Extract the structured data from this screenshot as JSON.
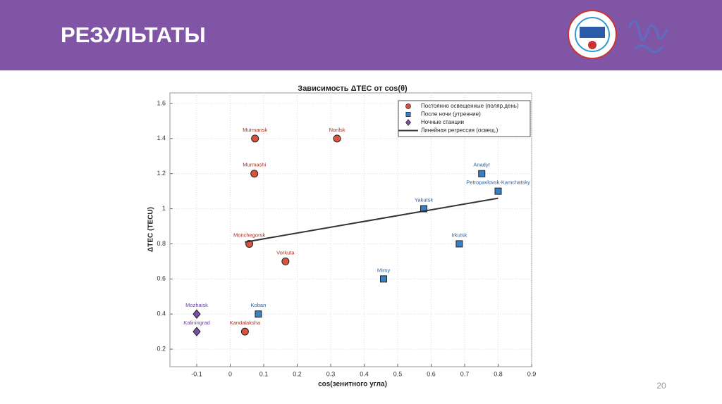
{
  "slide": {
    "title": "РЕЗУЛЬТАТЫ",
    "page_number": "20"
  },
  "chart_data": {
    "type": "scatter",
    "title": "Зависимость ΔTEC от cos(θ)",
    "x_label": "cos(зенитного угла)",
    "y_label": "ΔTEC (TECU)",
    "xlim": [
      -0.18,
      0.9
    ],
    "ylim": [
      0.1,
      1.66
    ],
    "xticks": [
      -0.1,
      0,
      0.1,
      0.2,
      0.3,
      0.4,
      0.5,
      0.6,
      0.7,
      0.8,
      0.9
    ],
    "yticks": [
      0.2,
      0.4,
      0.6,
      0.8,
      1,
      1.2,
      1.4,
      1.6
    ],
    "grid": true,
    "legend": "upper right",
    "series": [
      {
        "name": "Постоянно освещенные (поляр.день)",
        "marker": "circle",
        "color": "#d9533f",
        "label_color": "#a5301f",
        "labels": [
          "Murmansk",
          "Norilsk",
          "Murmashi",
          "Monchegorsk",
          "Vorkuta",
          "Kandalaksha"
        ],
        "x": [
          0.074,
          0.319,
          0.072,
          0.057,
          0.165,
          0.044
        ],
        "values": [
          1.4,
          1.4,
          1.2,
          0.8,
          0.7,
          0.3
        ]
      },
      {
        "name": "После ночи (утренние)",
        "marker": "square",
        "color": "#3a7fc4",
        "label_color": "#2a5f9f",
        "labels": [
          "Anadyr",
          "Petropavlovsk-Kamchatsky",
          "Yakutsk",
          "Irkutsk",
          "Mirny",
          "Koban"
        ],
        "x": [
          0.751,
          0.8,
          0.578,
          0.684,
          0.458,
          0.084
        ],
        "values": [
          1.2,
          1.1,
          1.0,
          0.8,
          0.6,
          0.4
        ]
      },
      {
        "name": "Ночные станции",
        "marker": "diamond",
        "color": "#7b4fa8",
        "label_color": "#6a3f98",
        "labels": [
          "Mozhaisk",
          "Kaliningrad"
        ],
        "x": [
          -0.1,
          -0.1
        ],
        "values": [
          0.4,
          0.3
        ]
      },
      {
        "name": "Линейная регрессия (освещ.)",
        "marker": "line",
        "color": "#333333",
        "x": [
          0.044,
          0.8
        ],
        "values": [
          0.81,
          1.06
        ]
      }
    ]
  }
}
